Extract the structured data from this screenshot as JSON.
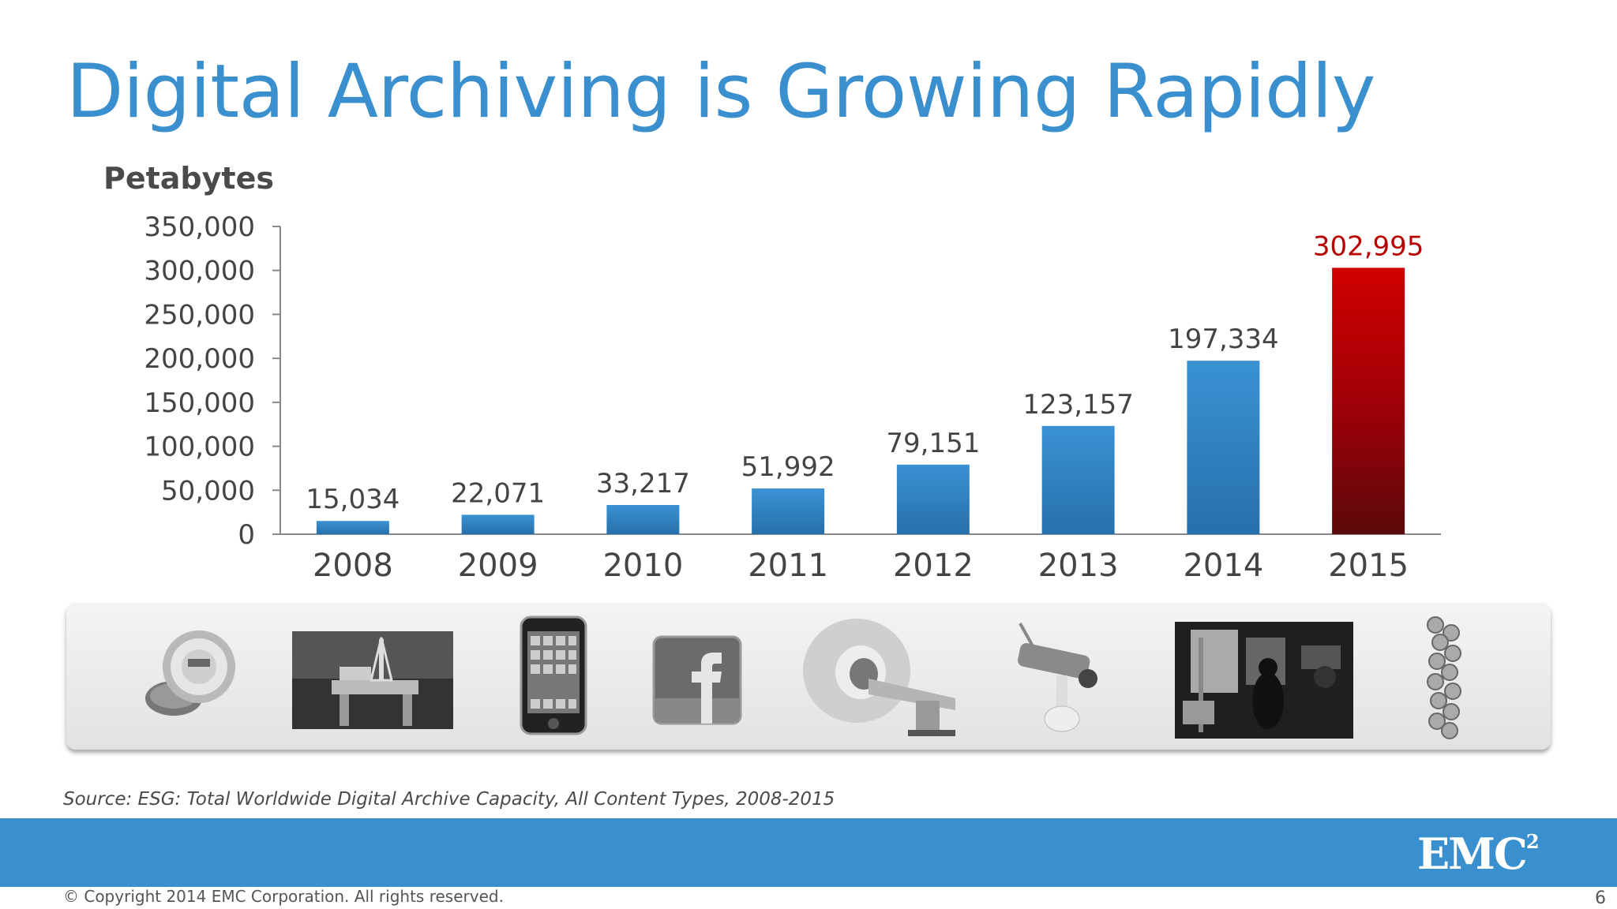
{
  "slide": {
    "title": "Digital Archiving is Growing Rapidly",
    "source": "Source: ESG: Total Worldwide Digital Archive Capacity, All Content Types, 2008-2015",
    "copyright": "© Copyright 2014 EMC Corporation. All rights reserved.",
    "page_number": "6",
    "logo_text": "EMC",
    "logo_superscript": "2",
    "colors": {
      "title": "#3a8fcf",
      "band": "#3a8fcf",
      "highlight": "#c00000"
    }
  },
  "pictures": [
    {
      "name": "utility-meter-icon"
    },
    {
      "name": "oil-platform-photo"
    },
    {
      "name": "smartphone-icon"
    },
    {
      "name": "facebook-icon"
    },
    {
      "name": "mri-scanner-icon"
    },
    {
      "name": "security-camera-icon"
    },
    {
      "name": "film-studio-photo"
    },
    {
      "name": "dna-helix-icon"
    }
  ],
  "chart_data": {
    "type": "bar",
    "title": "",
    "xlabel": "",
    "ylabel": "Petabytes",
    "categories": [
      "2008",
      "2009",
      "2010",
      "2011",
      "2012",
      "2013",
      "2014",
      "2015"
    ],
    "values": [
      15034,
      22071,
      33217,
      51992,
      79151,
      123157,
      197334,
      302995
    ],
    "value_labels": [
      "15,034",
      "22,071",
      "33,217",
      "51,992",
      "79,151",
      "123,157",
      "197,334",
      "302,995"
    ],
    "ylim": [
      0,
      350000
    ],
    "yticks": [
      0,
      50000,
      100000,
      150000,
      200000,
      250000,
      300000,
      350000
    ],
    "ytick_labels": [
      "0",
      "50,000",
      "100,000",
      "150,000",
      "200,000",
      "250,000",
      "300,000",
      "350,000"
    ],
    "highlight_index": 7,
    "grid": false,
    "legend": "none",
    "bar_color": "#2f7fc1",
    "highlight_color": "#b80000"
  }
}
